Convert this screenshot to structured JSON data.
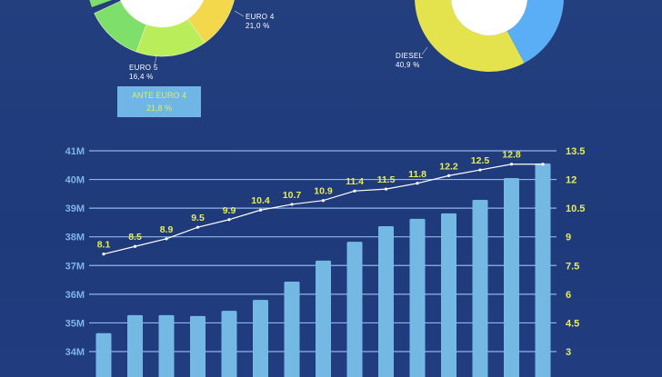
{
  "donut_left": {
    "labels": [
      {
        "name": "EURO 4",
        "value": "21,0 %"
      },
      {
        "name": "EURO 5",
        "value": "16,4 %"
      }
    ],
    "highlight": {
      "name": "ANTE EURO 4",
      "value": "21,8 %"
    },
    "colors": [
      "#7ee06a",
      "#b9ee5a",
      "#f2d84a"
    ]
  },
  "donut_right": {
    "labels": [
      {
        "name": "DIESEL",
        "value": "40,9 %"
      }
    ],
    "colors": [
      "#e4e34e",
      "#5aaef5"
    ]
  },
  "chart_data": {
    "type": "bar+line",
    "left_axis": {
      "ticks": [
        "34M",
        "35M",
        "36M",
        "37M",
        "38M",
        "39M",
        "40M",
        "41M"
      ],
      "range": [
        33,
        41
      ]
    },
    "right_axis": {
      "ticks": [
        "3",
        "4.5",
        "6",
        "7.5",
        "9",
        "10.5",
        "12",
        "13.5"
      ],
      "range": [
        1.5,
        13.5
      ]
    },
    "grid": true,
    "bars": {
      "values": [
        34.64,
        35.27,
        35.27,
        35.24,
        35.42,
        35.8,
        36.44,
        37.17,
        37.83,
        38.37,
        38.63,
        38.82,
        39.29,
        40.05,
        40.56
      ],
      "color": "#74b9e4"
    },
    "line": {
      "values": [
        8.1,
        8.5,
        8.9,
        9.5,
        9.9,
        10.4,
        10.7,
        10.9,
        11.4,
        11.5,
        11.8,
        12.2,
        12.5,
        12.8,
        12.8
      ],
      "labels": [
        "8.1",
        "8.5",
        "8.9",
        "9.5",
        "9.9",
        "10.4",
        "10.7",
        "10.9",
        "11.4",
        "11.5",
        "11.8",
        "12.2",
        "12.5",
        "12.8",
        ""
      ],
      "color": "#ffffff",
      "label_color": "#e6ec5a"
    }
  }
}
